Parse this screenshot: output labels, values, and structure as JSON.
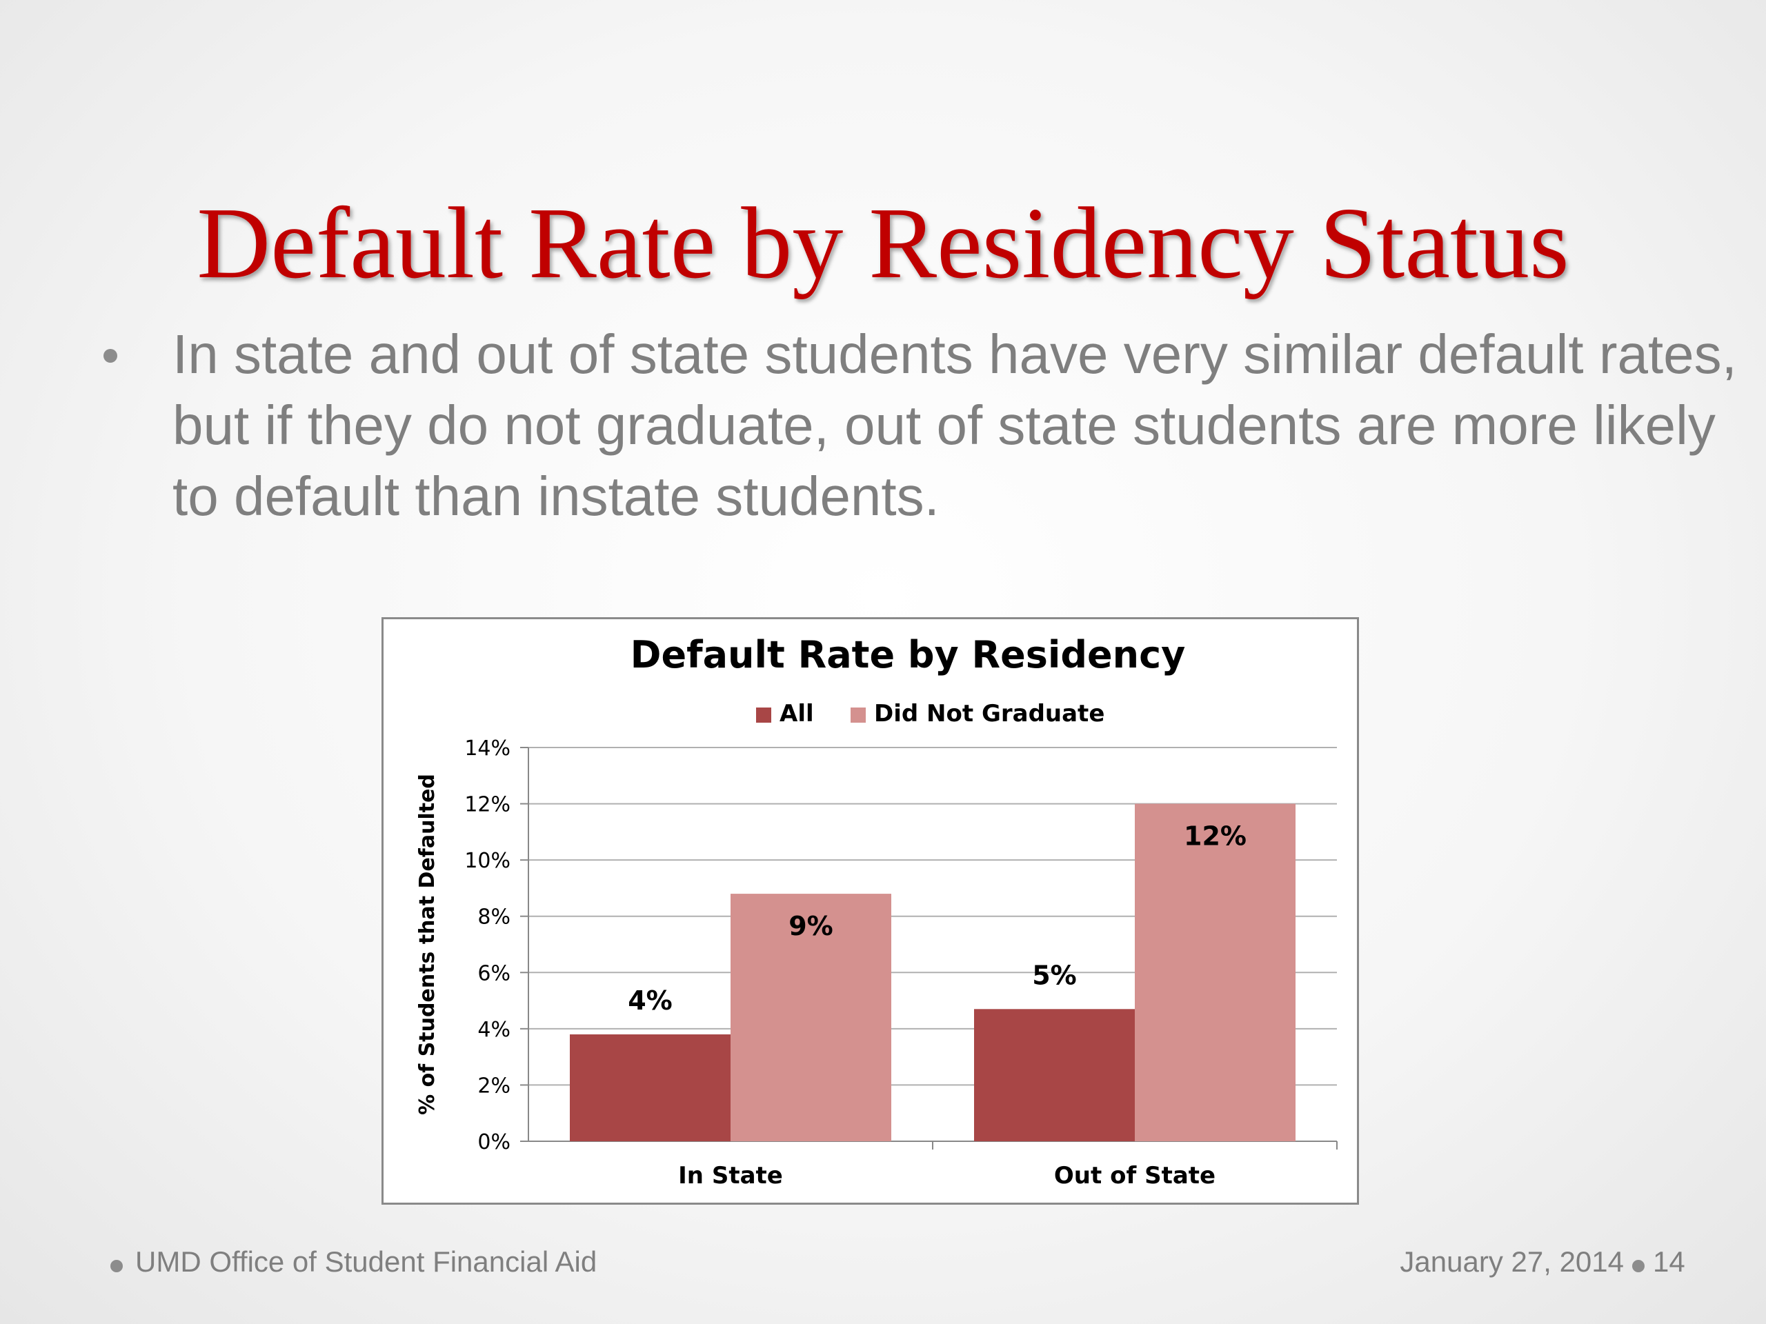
{
  "slide": {
    "title": "Default Rate by Residency Status",
    "bullet": "In state and out of state students have very similar default rates, but if they do not graduate, out of state students are more likely to default than instate students.",
    "footer_left": "UMD Office of Student Financial Aid",
    "footer_date": "January 27, 2014",
    "page_number": "14"
  },
  "chart_data": {
    "type": "bar",
    "title": "Default Rate by Residency",
    "xlabel": "",
    "ylabel": "% of Students that Defaulted",
    "categories": [
      "In State",
      "Out of State"
    ],
    "series": [
      {
        "name": "All",
        "values": [
          3.8,
          4.7
        ],
        "labels": [
          "4%",
          "5%"
        ],
        "color": "#a84646"
      },
      {
        "name": "Did Not Graduate",
        "values": [
          8.8,
          12.0
        ],
        "labels": [
          "9%",
          "12%"
        ],
        "color": "#d4918f"
      }
    ],
    "ylim": [
      0,
      14
    ],
    "yticks": [
      "0%",
      "2%",
      "4%",
      "6%",
      "8%",
      "10%",
      "12%",
      "14%"
    ],
    "grid": true,
    "legend_position": "top"
  },
  "colors": {
    "title": "#c00000",
    "body_text": "#7f7f7f",
    "gridline": "#b0b0b0"
  }
}
